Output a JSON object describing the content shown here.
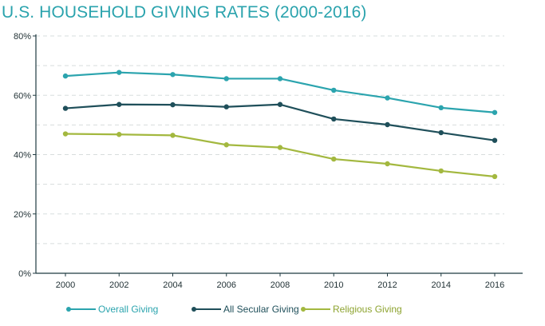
{
  "chart_data": {
    "type": "line",
    "title": "U.S. HOUSEHOLD GIVING RATES (2000-2016)",
    "x": [
      "2000",
      "2002",
      "2004",
      "2006",
      "2008",
      "2010",
      "2012",
      "2014",
      "2016"
    ],
    "yticks": [
      "0%",
      "20%",
      "40%",
      "60%",
      "80%"
    ],
    "ylim": [
      0,
      80
    ],
    "grid": true,
    "legend_position": "bottom",
    "series": [
      {
        "name": "Overall Giving",
        "color": "#2ba4ae",
        "values": [
          66.5,
          67.7,
          67.0,
          65.6,
          65.6,
          61.7,
          59.1,
          55.8,
          54.2
        ]
      },
      {
        "name": "All Secular Giving",
        "color": "#1f4f5a",
        "values": [
          55.6,
          56.9,
          56.8,
          56.1,
          56.9,
          52.0,
          50.1,
          47.4,
          44.8
        ]
      },
      {
        "name": "Religious Giving",
        "color": "#a3b83f",
        "values": [
          47.0,
          46.8,
          46.5,
          43.3,
          42.4,
          38.5,
          36.9,
          34.5,
          32.6
        ]
      }
    ]
  }
}
